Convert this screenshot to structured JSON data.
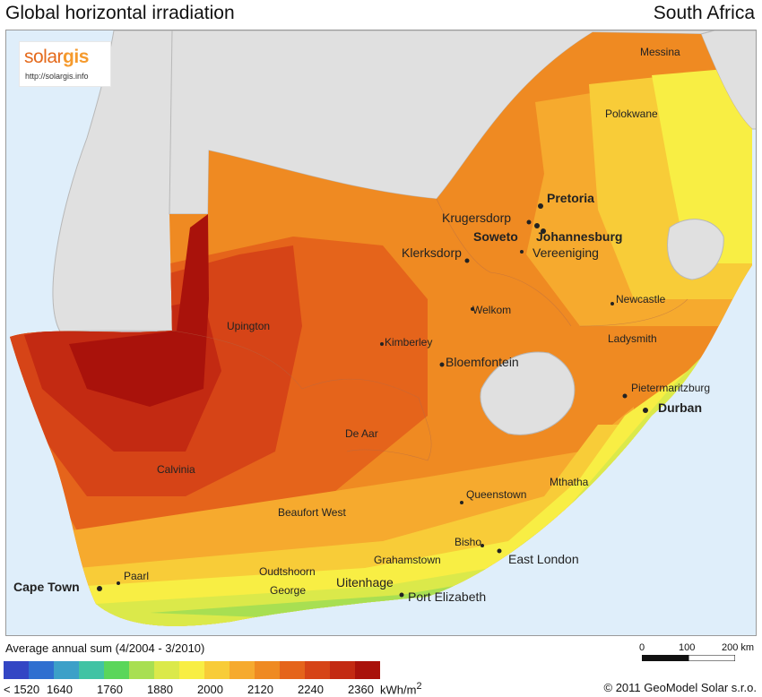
{
  "header": {
    "title": "Global horizontal irradiation",
    "country": "South Africa"
  },
  "logo": {
    "text_a": "solar",
    "text_b": "gis",
    "url": "http://solargis.info"
  },
  "cities": [
    {
      "key": "messina",
      "label": "Messina"
    },
    {
      "key": "polokwane",
      "label": "Polokwane"
    },
    {
      "key": "pretoria",
      "label": "Pretoria"
    },
    {
      "key": "krugersdorp",
      "label": "Krugersdorp"
    },
    {
      "key": "soweto",
      "label": "Soweto"
    },
    {
      "key": "johannesburg",
      "label": "Johannesburg"
    },
    {
      "key": "klerksdorp",
      "label": "Klerksdorp"
    },
    {
      "key": "vereeniging",
      "label": "Vereeniging"
    },
    {
      "key": "newcastle",
      "label": "Newcastle"
    },
    {
      "key": "welkom",
      "label": "Welkom"
    },
    {
      "key": "upington",
      "label": "Upington"
    },
    {
      "key": "ladysmith",
      "label": "Ladysmith"
    },
    {
      "key": "kimberley",
      "label": "Kimberley"
    },
    {
      "key": "bloemfontein",
      "label": "Bloemfontein"
    },
    {
      "key": "pietermaritzburg",
      "label": "Pietermaritzburg"
    },
    {
      "key": "durban",
      "label": "Durban"
    },
    {
      "key": "de-aar",
      "label": "De Aar"
    },
    {
      "key": "calvinia",
      "label": "Calvinia"
    },
    {
      "key": "mthatha",
      "label": "Mthatha"
    },
    {
      "key": "queenstown",
      "label": "Queenstown"
    },
    {
      "key": "beaufort-west",
      "label": "Beaufort West"
    },
    {
      "key": "bisho",
      "label": "Bisho"
    },
    {
      "key": "east-london",
      "label": "East London"
    },
    {
      "key": "grahamstown",
      "label": "Grahamstown"
    },
    {
      "key": "oudtshoorn",
      "label": "Oudtshoorn"
    },
    {
      "key": "paarl",
      "label": "Paarl"
    },
    {
      "key": "uitenhage",
      "label": "Uitenhage"
    },
    {
      "key": "cape-town",
      "label": "Cape Town"
    },
    {
      "key": "george",
      "label": "George"
    },
    {
      "key": "port-elizabeth",
      "label": "Port Elizabeth"
    }
  ],
  "legend": {
    "caption": "Average annual sum (4/2004 - 3/2010)",
    "colors": [
      "#3346c4",
      "#2f6fd0",
      "#3ca0c8",
      "#41c3a4",
      "#5ad65a",
      "#a8df52",
      "#dbe94a",
      "#f8ee44",
      "#f8cc38",
      "#f6aa2e",
      "#ef8a22",
      "#e5641b",
      "#d64417",
      "#c32a12",
      "#a9120b"
    ],
    "ticks": [
      "< 1520",
      "1640",
      "1760",
      "1880",
      "2000",
      "2120",
      "2240",
      "2360"
    ],
    "unit": "kWh/m",
    "unit_sup": "2"
  },
  "scale": {
    "labels": [
      "0",
      "100",
      "200 km"
    ]
  },
  "copyright": "© 2011 GeoModel Solar s.r.o."
}
